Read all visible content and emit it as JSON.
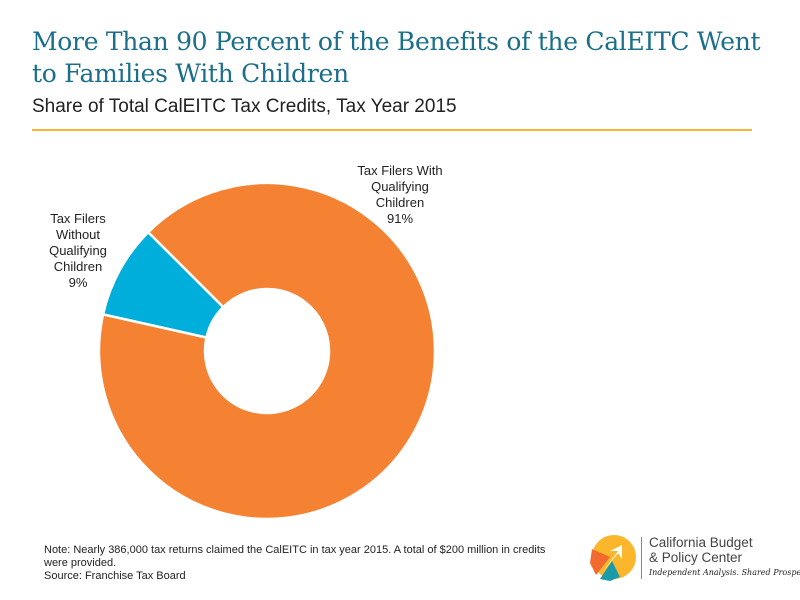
{
  "title": "More Than 90 Percent of the Benefits of the CalEITC Went to Families With Children",
  "subtitle": "Share of Total CalEITC Tax Credits, Tax Year 2015",
  "chart_data": {
    "type": "pie",
    "donut": true,
    "start_angle_deg": 315,
    "slices": [
      {
        "label": [
          "Tax Filers With",
          "Qualifying",
          "Children"
        ],
        "value": 91,
        "value_label": "91%",
        "color": "#f58233"
      },
      {
        "label": [
          "Tax Filers",
          "Without",
          "Qualifying",
          "Children"
        ],
        "value": 9,
        "value_label": "9%",
        "color": "#00aedb"
      }
    ]
  },
  "note_lines": [
    "Note: Nearly 386,000 tax returns claimed the CalEITC in tax year 2015. A total of $200 million in credits were provided.",
    "Source: Franchise Tax Board"
  ],
  "logo": {
    "name_line1": "California Budget",
    "name_line2": "& Policy Center",
    "tagline": "Independent Analysis. Shared Prosperity.",
    "colors": [
      "#fbb62b",
      "#f26a2d",
      "#1b9aaa"
    ]
  },
  "colors": {
    "title": "#1b6f8b",
    "rule": "#f6b734"
  }
}
